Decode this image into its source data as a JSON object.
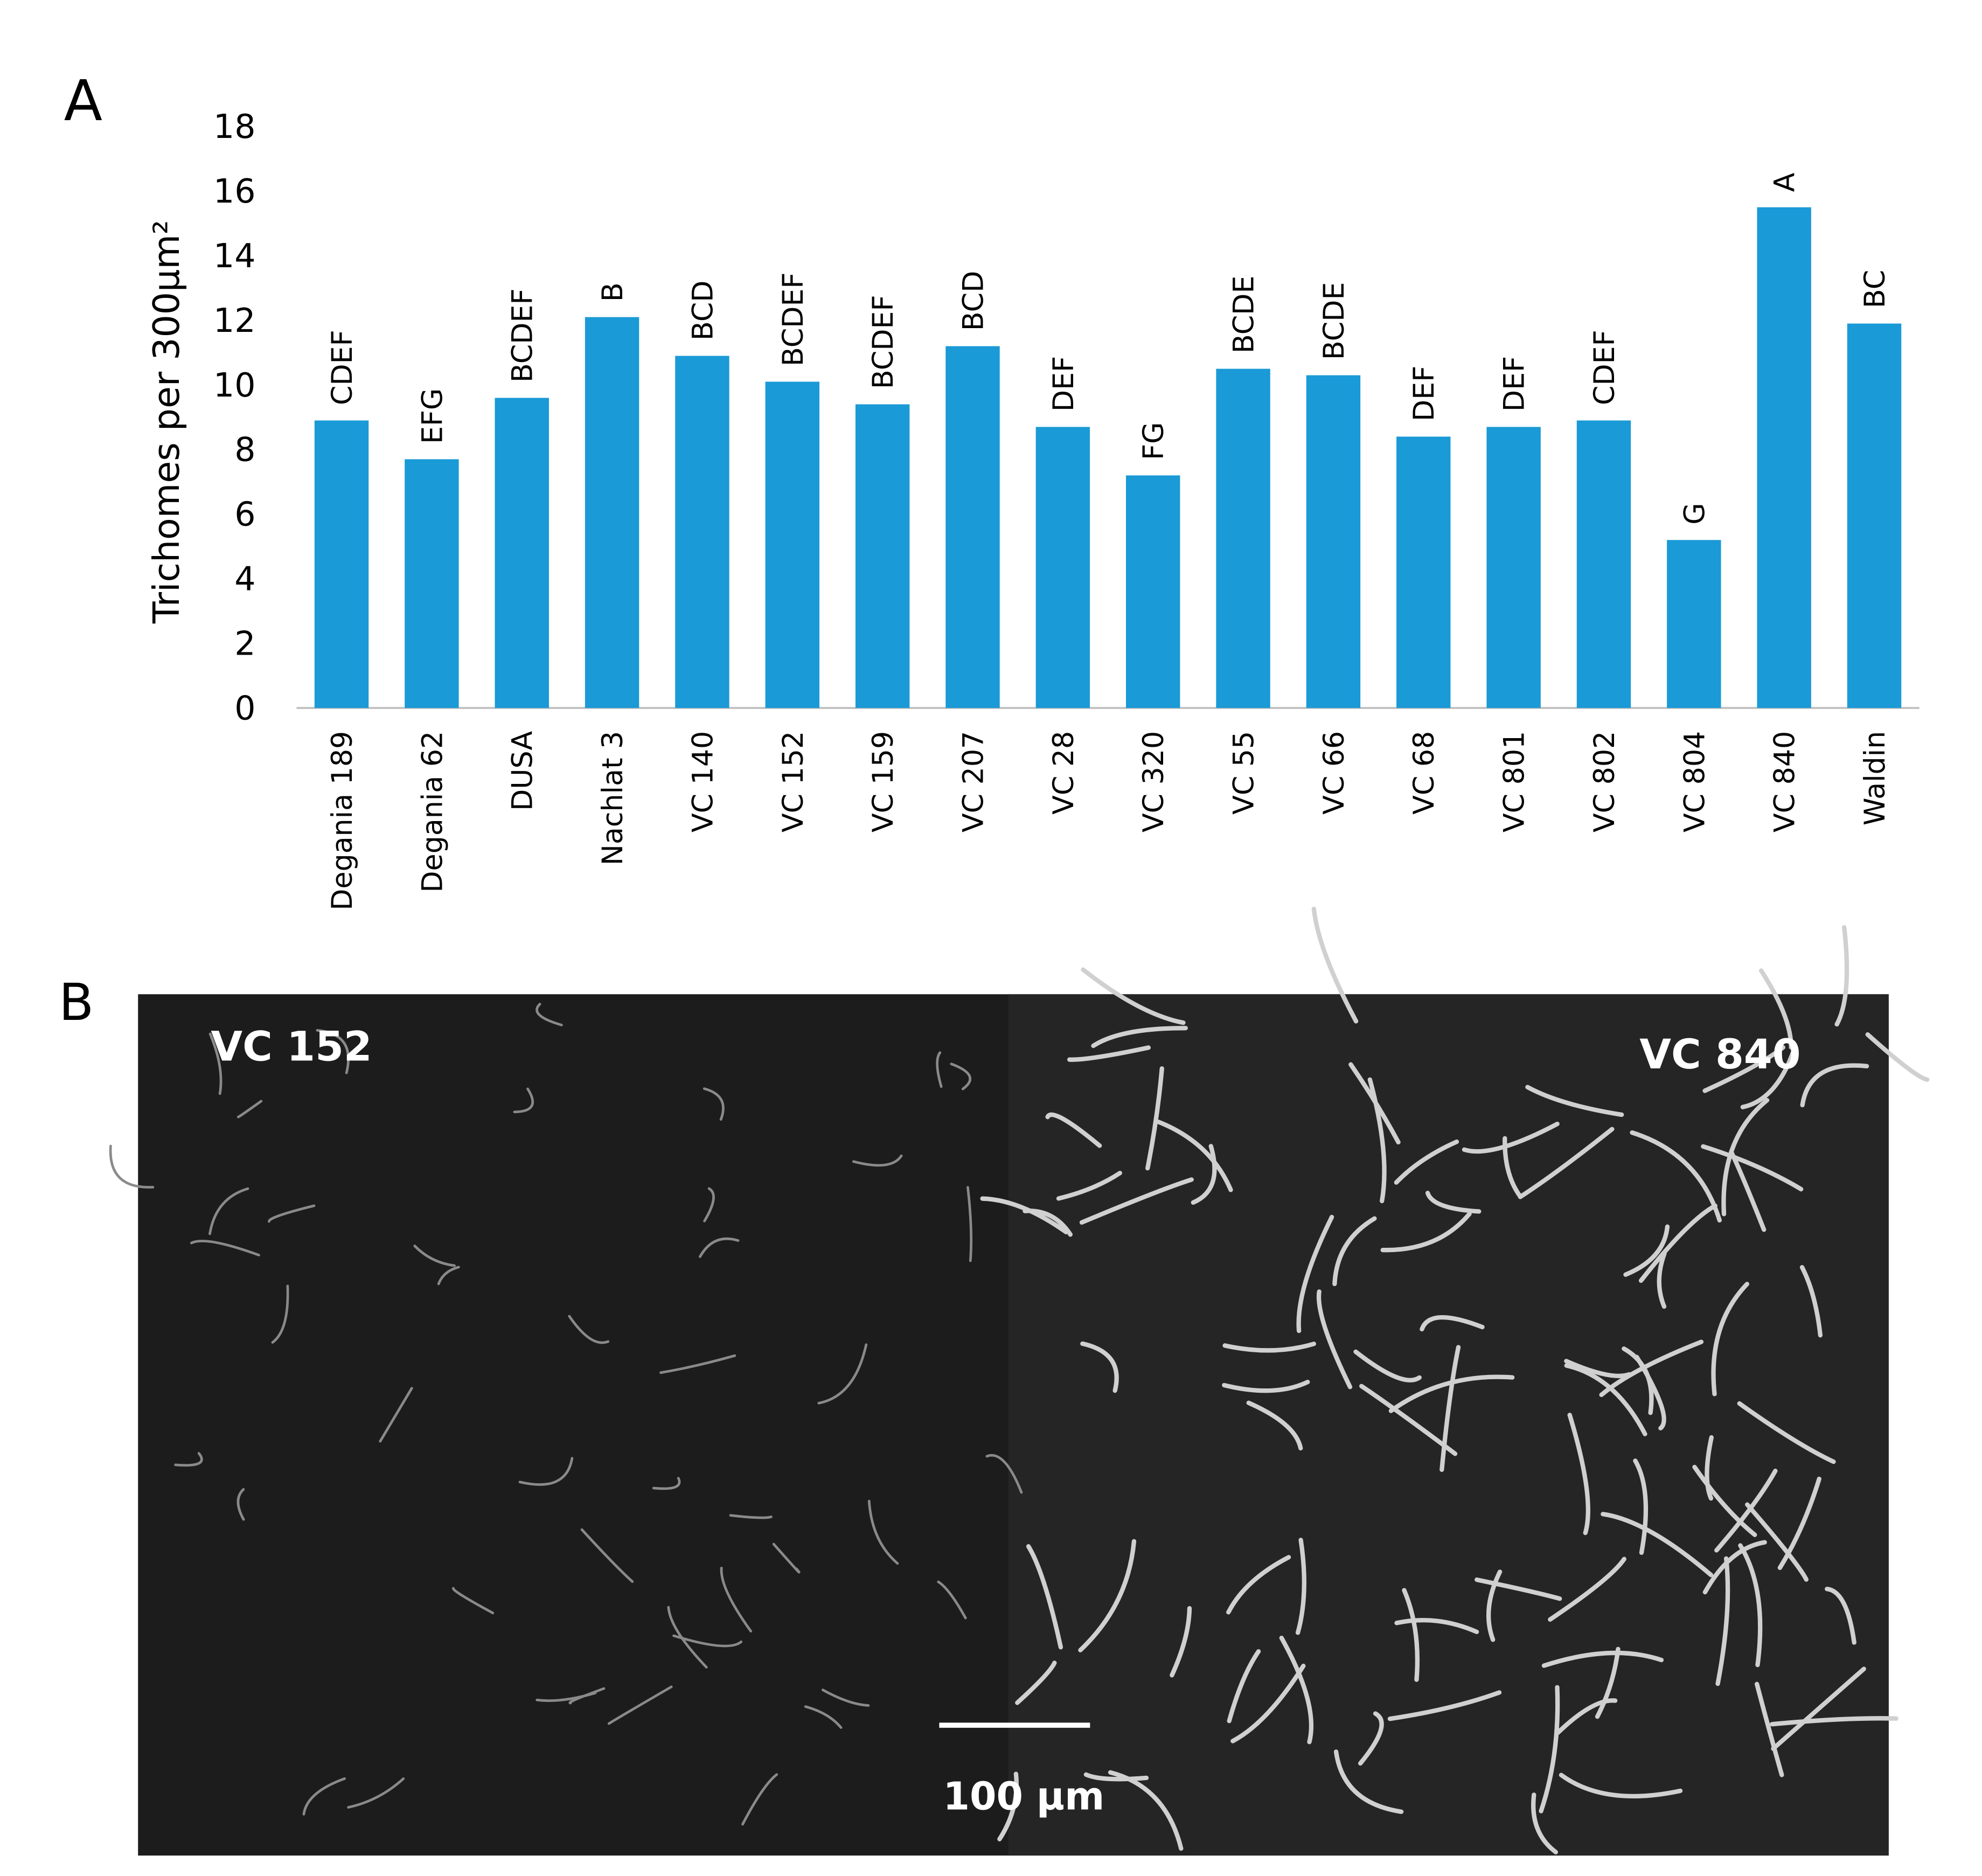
{
  "panel_a_label": "A",
  "panel_b_label": "B",
  "chart_data": {
    "type": "bar",
    "y_label": "Trichomes per 300µm²",
    "categories": [
      "Degania 189",
      "Degania 62",
      "DUSA",
      "Nachlat 3",
      "VC 140",
      "VC 152",
      "VC 159",
      "VC 207",
      "VC 28",
      "VC 320",
      "VC 55",
      "VC 66",
      "VC 68",
      "VC 801",
      "VC 802",
      "VC 804",
      "VC 840",
      "Waldin"
    ],
    "values": [
      8.9,
      7.7,
      9.6,
      12.1,
      10.9,
      10.1,
      9.4,
      11.2,
      8.7,
      7.2,
      10.5,
      10.3,
      8.4,
      8.7,
      8.9,
      5.2,
      15.5,
      11.9
    ],
    "annotations": [
      "CDEF",
      "EFG",
      "BCDEF",
      "B",
      "BCD",
      "BCDEF",
      "BCDEF",
      "BCD",
      "DEF",
      "FG",
      "BCDE",
      "BCDE",
      "DEF",
      "DEF",
      "CDEF",
      "G",
      "A",
      "BC"
    ],
    "color": "#1a9ad6",
    "ylim": [
      0,
      18
    ],
    "yticks": [
      0,
      2,
      4,
      6,
      8,
      10,
      12,
      14,
      16,
      18
    ],
    "grid": false
  },
  "image": {
    "left_label": "VC 152",
    "right_label": "VC 840",
    "scale_bar": "100 µm"
  }
}
